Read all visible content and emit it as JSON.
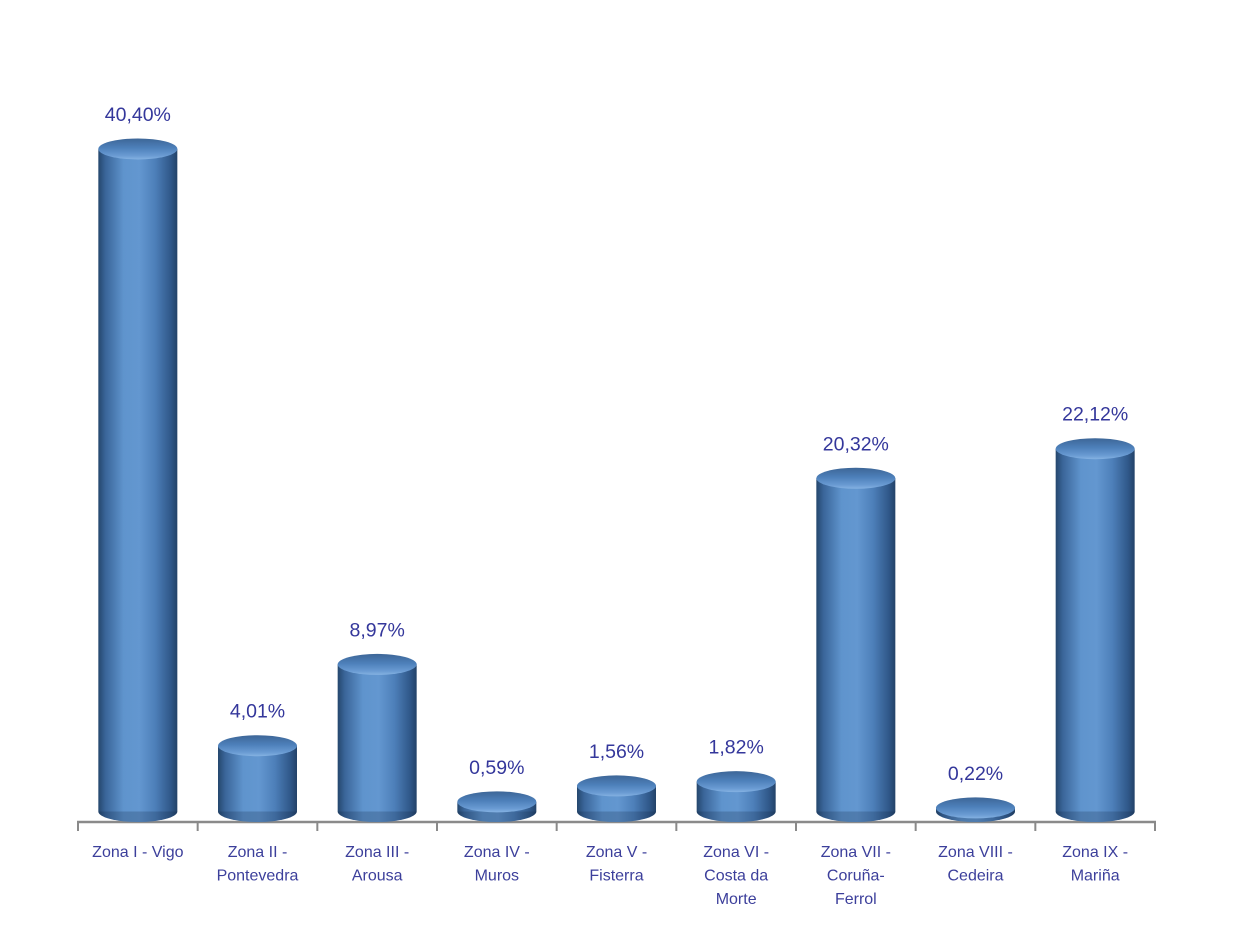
{
  "chart_data": {
    "type": "bar",
    "subtype": "3d-cylinder-vertical",
    "title": "",
    "xlabel": "",
    "ylabel": "",
    "categories": [
      "Zona I - Vigo",
      "Zona II - Pontevedra",
      "Zona III - Arousa",
      "Zona IV - Muros",
      "Zona V - Fisterra",
      "Zona VI - Costa da Morte",
      "Zona VII - Coruña-Ferrol",
      "Zona VIII - Cedeira",
      "Zona IX - Mariña"
    ],
    "category_label_lines": [
      [
        "Zona I - Vigo"
      ],
      [
        "Zona II -",
        "Pontevedra"
      ],
      [
        "Zona III -",
        "Arousa"
      ],
      [
        "Zona IV -",
        "Muros"
      ],
      [
        "Zona V -",
        "Fisterra"
      ],
      [
        "Zona VI -",
        "Costa da",
        "Morte"
      ],
      [
        "Zona VII -",
        "Coruña-",
        "Ferrol"
      ],
      [
        "Zona VIII -",
        "Cedeira"
      ],
      [
        "Zona IX -",
        "Mariña"
      ]
    ],
    "values": [
      40.4,
      4.01,
      8.97,
      0.59,
      1.56,
      1.82,
      20.32,
      0.22,
      22.12
    ],
    "value_labels": [
      "40,40%",
      "4,01%",
      "8,97%",
      "0,59%",
      "1,56%",
      "1,82%",
      "20,32%",
      "0,22%",
      "22,12%"
    ],
    "ylim": [
      0,
      45
    ],
    "grid": false,
    "legend": null,
    "decimal_separator": ",",
    "colors": {
      "label_text": "#34379b",
      "category_text": "#3c3f9b",
      "bar_base": "#4f81bd",
      "bar_side_dark": "#25476d",
      "bar_side_light": "#6397d0",
      "bar_top_dark": "#3d6697",
      "bar_top_light": "#85b2e2",
      "axis": "#8a8a8a",
      "background": "#ffffff"
    }
  }
}
